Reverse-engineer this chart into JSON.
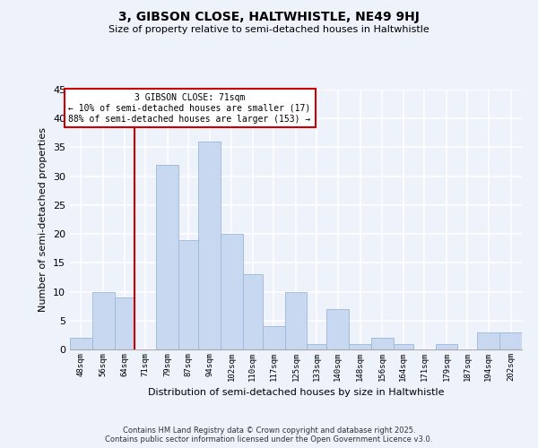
{
  "title": "3, GIBSON CLOSE, HALTWHISTLE, NE49 9HJ",
  "subtitle": "Size of property relative to semi-detached houses in Haltwhistle",
  "xlabel": "Distribution of semi-detached houses by size in Haltwhistle",
  "ylabel": "Number of semi-detached properties",
  "bar_color": "#c8d8f0",
  "bar_edge_color": "#9ab8d8",
  "background_color": "#eef2fb",
  "grid_color": "#ffffff",
  "bin_labels": [
    "48sqm",
    "56sqm",
    "64sqm",
    "71sqm",
    "79sqm",
    "87sqm",
    "94sqm",
    "102sqm",
    "110sqm",
    "117sqm",
    "125sqm",
    "133sqm",
    "140sqm",
    "148sqm",
    "156sqm",
    "164sqm",
    "171sqm",
    "179sqm",
    "187sqm",
    "194sqm",
    "202sqm"
  ],
  "bin_edges": [
    48,
    56,
    64,
    71,
    79,
    87,
    94,
    102,
    110,
    117,
    125,
    133,
    140,
    148,
    156,
    164,
    171,
    179,
    187,
    194,
    202
  ],
  "counts": [
    2,
    10,
    9,
    0,
    32,
    19,
    36,
    20,
    13,
    4,
    10,
    1,
    7,
    1,
    2,
    1,
    0,
    1,
    0,
    3,
    3
  ],
  "ylim": [
    0,
    45
  ],
  "yticks": [
    0,
    5,
    10,
    15,
    20,
    25,
    30,
    35,
    40,
    45
  ],
  "property_line_x": 71,
  "property_label": "3 GIBSON CLOSE: 71sqm",
  "annotation_line1": "← 10% of semi-detached houses are smaller (17)",
  "annotation_line2": "88% of semi-detached houses are larger (153) →",
  "annotation_box_color": "#ffffff",
  "annotation_box_edge": "#cc0000",
  "property_line_color": "#cc0000",
  "footer_line1": "Contains HM Land Registry data © Crown copyright and database right 2025.",
  "footer_line2": "Contains public sector information licensed under the Open Government Licence v3.0."
}
